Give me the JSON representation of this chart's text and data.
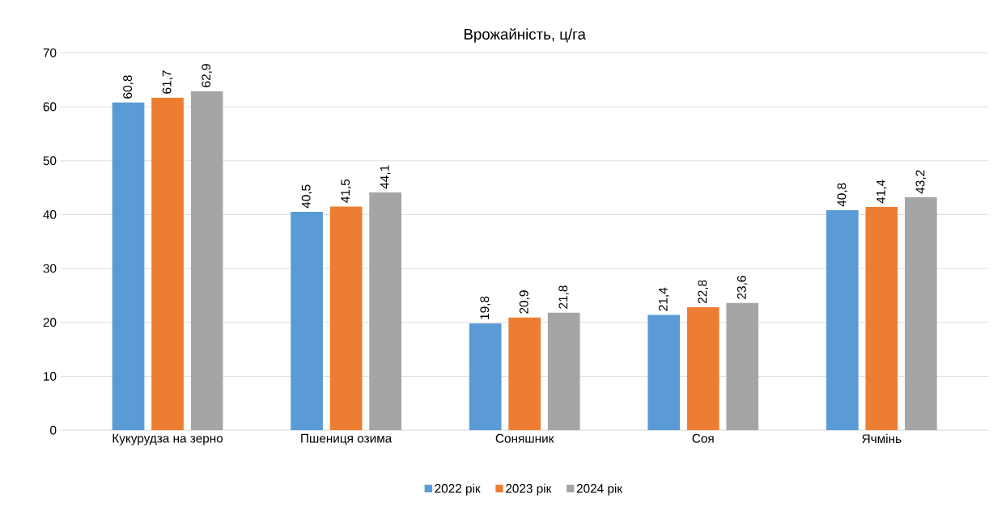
{
  "chart_data": {
    "type": "bar",
    "title": "Врожайність, ц/га",
    "categories": [
      "Кукурудза на зерно",
      "Пшениця озима",
      "Соняшник",
      "Соя",
      "Ячмінь"
    ],
    "series": [
      {
        "name": "2022 рік",
        "color": "#5b9bd5",
        "values": [
          60.8,
          40.5,
          19.8,
          21.4,
          40.8
        ],
        "value_labels": [
          "60,8",
          "40,5",
          "19,8",
          "21,4",
          "40,8"
        ]
      },
      {
        "name": "2023 рік",
        "color": "#ed7d31",
        "values": [
          61.7,
          41.5,
          20.9,
          22.8,
          41.4
        ],
        "value_labels": [
          "61,7",
          "41,5",
          "20,9",
          "22,8",
          "41,4"
        ]
      },
      {
        "name": "2024 рік",
        "color": "#a5a5a5",
        "values": [
          62.9,
          44.1,
          21.8,
          23.6,
          43.2
        ],
        "value_labels": [
          "62,9",
          "44,1",
          "21,8",
          "23,6",
          "43,2"
        ]
      }
    ],
    "ylim": [
      0,
      70
    ],
    "yticks": [
      0,
      10,
      20,
      30,
      40,
      50,
      60,
      70
    ],
    "grid": "y",
    "legend": "bottom"
  }
}
